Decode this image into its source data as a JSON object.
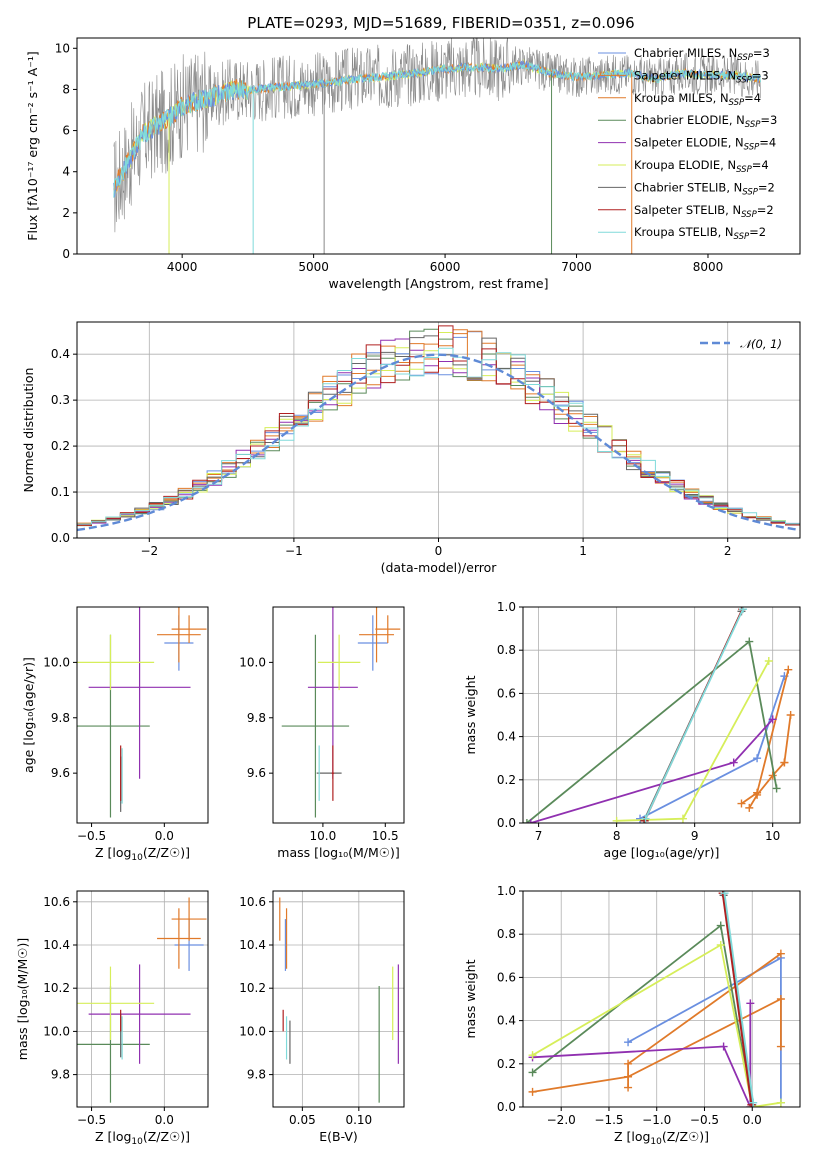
{
  "title": "PLATE=0293, MJD=51689, FIBERID=0351, z=0.096",
  "models": [
    {
      "key": "chabrier_miles",
      "color": "#6a8fe0"
    },
    {
      "key": "salpeter_miles",
      "color": "#e07a2a"
    },
    {
      "key": "kroupa_miles",
      "color": "#e07a2a"
    },
    {
      "key": "chabrier_elodie",
      "color": "#5a8a5a"
    },
    {
      "key": "salpeter_elodie",
      "color": "#9030b0"
    },
    {
      "key": "kroupa_elodie",
      "color": "#d6ee5a"
    },
    {
      "key": "chabrier_stelib",
      "color": "#666666"
    },
    {
      "key": "salpeter_stelib",
      "color": "#b02020"
    },
    {
      "key": "kroupa_stelib",
      "color": "#80dada"
    }
  ],
  "chart_data": [
    {
      "id": "spectrum",
      "type": "line",
      "xlabel": "wavelength [Angstrom, rest frame]",
      "ylabel": "Flux [fλ10⁻¹⁷ erg cm⁻² s⁻¹ A⁻¹]",
      "xlim": [
        3200,
        8700
      ],
      "ylim": [
        0,
        10.5
      ],
      "xticks": [
        4000,
        5000,
        6000,
        7000,
        8000
      ],
      "yticks": [
        0,
        2,
        4,
        6,
        8,
        10
      ],
      "legend_position": "right",
      "legend": [
        {
          "label": "Chabrier MILES, N",
          "sub": "SSP",
          "suffix": "=3",
          "color": "#6a8fe0"
        },
        {
          "label": "Salpeter MILES, N",
          "sub": "SSP",
          "suffix": "=3",
          "color": "#e07a2a"
        },
        {
          "label": "Kroupa MILES, N",
          "sub": "SSP",
          "suffix": "=4",
          "color": "#e07a2a"
        },
        {
          "label": "Chabrier ELODIE, N",
          "sub": "SSP",
          "suffix": "=3",
          "color": "#5a8a5a"
        },
        {
          "label": "Salpeter ELODIE, N",
          "sub": "SSP",
          "suffix": "=4",
          "color": "#9030b0"
        },
        {
          "label": "Kroupa ELODIE, N",
          "sub": "SSP",
          "suffix": "=4",
          "color": "#d6ee5a"
        },
        {
          "label": "Chabrier STELIB, N",
          "sub": "SSP",
          "suffix": "=2",
          "color": "#666666"
        },
        {
          "label": "Salpeter STELIB, N",
          "sub": "SSP",
          "suffix": "=2",
          "color": "#b02020"
        },
        {
          "label": "Kroupa STELIB, N",
          "sub": "SSP",
          "suffix": "=2",
          "color": "#80dada"
        }
      ],
      "continuum": {
        "x": [
          3480,
          3600,
          3700,
          3800,
          3900,
          4000,
          4100,
          4200,
          4300,
          4400,
          4500,
          4700,
          4900,
          5100,
          5300,
          5500,
          5800,
          6000,
          6200,
          6400,
          6600,
          6800,
          7000,
          7200,
          7400,
          7600,
          7800,
          8000,
          8200,
          8400,
          8600
        ],
        "y": [
          3.2,
          4.6,
          5.8,
          6.2,
          6.6,
          7.2,
          7.4,
          7.6,
          7.8,
          8.0,
          8.0,
          8.1,
          8.2,
          8.3,
          8.5,
          8.6,
          8.8,
          9.0,
          9.1,
          9.0,
          9.2,
          8.8,
          8.6,
          8.7,
          8.8,
          8.5,
          8.8,
          8.7,
          8.7,
          8.5,
          8.4
        ]
      },
      "drops": [
        {
          "x": 3900,
          "color": "#d6ee5a"
        },
        {
          "x": 4540,
          "color": "#80dada"
        },
        {
          "x": 5080,
          "color": "#888888"
        },
        {
          "x": 6810,
          "color": "#5a8a5a"
        },
        {
          "x": 7420,
          "color": "#e07a2a"
        }
      ]
    },
    {
      "id": "residual_histogram",
      "type": "area",
      "xlabel": "(data-model)/error",
      "ylabel": "Normed distribution",
      "xlim": [
        -2.5,
        2.5
      ],
      "ylim": [
        0,
        0.47
      ],
      "xticks": [
        -2,
        -1,
        0,
        1,
        2
      ],
      "yticks": [
        0.0,
        0.1,
        0.2,
        0.3,
        0.4
      ],
      "grid": true,
      "legend_position": "top-right",
      "legend_label": "𝒩(0, 1)",
      "normal_color": "#5f8ad6"
    },
    {
      "id": "age_vs_Z",
      "type": "scatter",
      "xlabel_main": "Z [log",
      "xlabel_sub": "10",
      "xlabel_rest": "(Z/Z☉)]",
      "ylabel": "age  [log₁₀(age/yr)]",
      "xlim": [
        -0.6,
        0.3
      ],
      "ylim": [
        9.42,
        10.2
      ],
      "xticks": [
        -0.5,
        0.0
      ],
      "yticks": [
        9.6,
        9.8,
        10.0
      ],
      "points": [
        {
          "m": 0,
          "x": 0.1,
          "y": 10.07,
          "xe": 0.1,
          "ye": 0.1
        },
        {
          "m": 1,
          "x": 0.1,
          "y": 10.1,
          "xe": 0.15,
          "ye": 0.1
        },
        {
          "m": 2,
          "x": 0.17,
          "y": 10.12,
          "xe": 0.12,
          "ye": 0.05
        },
        {
          "m": 3,
          "x": -0.37,
          "y": 9.77,
          "xe": 0.27,
          "ye": 0.33
        },
        {
          "m": 4,
          "x": -0.17,
          "y": 9.91,
          "xe": 0.35,
          "ye": 0.33
        },
        {
          "m": 5,
          "x": -0.37,
          "y": 10.0,
          "xe": 0.3,
          "ye": 0.1
        },
        {
          "m": 6,
          "x": -0.3,
          "y": 9.56,
          "xe": 0.0,
          "ye": 0.1
        },
        {
          "m": 7,
          "x": -0.3,
          "y": 9.6,
          "xe": 0.0,
          "ye": 0.1
        },
        {
          "m": 8,
          "x": -0.29,
          "y": 9.59,
          "xe": 0.0,
          "ye": 0.1
        }
      ]
    },
    {
      "id": "age_vs_mass",
      "type": "scatter",
      "xlabel": "mass [log₁₀(M/M☉)]",
      "xlim": [
        9.6,
        10.65
      ],
      "ylim": [
        9.42,
        10.2
      ],
      "xticks": [
        10.0,
        10.5
      ],
      "yticks": [
        9.6,
        9.8,
        10.0
      ],
      "points": [
        {
          "m": 0,
          "x": 10.4,
          "y": 10.07,
          "xe": 0.12,
          "ye": 0.1
        },
        {
          "m": 1,
          "x": 10.43,
          "y": 10.1,
          "xe": 0.14,
          "ye": 0.1
        },
        {
          "m": 2,
          "x": 10.52,
          "y": 10.12,
          "xe": 0.1,
          "ye": 0.05
        },
        {
          "m": 3,
          "x": 9.94,
          "y": 9.77,
          "xe": 0.27,
          "ye": 0.33
        },
        {
          "m": 4,
          "x": 10.08,
          "y": 9.91,
          "xe": 0.2,
          "ye": 0.33
        },
        {
          "m": 5,
          "x": 10.13,
          "y": 10.0,
          "xe": 0.17,
          "ye": 0.1
        },
        {
          "m": 6,
          "x": 10.05,
          "y": 9.6,
          "xe": 0.1,
          "ye": 0.0
        },
        {
          "m": 7,
          "x": 10.08,
          "y": 9.6,
          "xe": 0.01,
          "ye": 0.1
        },
        {
          "m": 8,
          "x": 9.97,
          "y": 9.6,
          "xe": 0.0,
          "ye": 0.1
        }
      ]
    },
    {
      "id": "weight_vs_age",
      "type": "line",
      "xlabel": "age  [log₁₀(age/yr)]",
      "ylabel": "mass weight",
      "xlim": [
        6.8,
        10.35
      ],
      "ylim": [
        0,
        1
      ],
      "xticks": [
        7,
        8,
        9,
        10
      ],
      "yticks": [
        0.0,
        0.2,
        0.4,
        0.6,
        0.8,
        1.0
      ],
      "grid": true,
      "series": [
        {
          "m": 0,
          "x": [
            8.3,
            9.8,
            10.15
          ],
          "y": [
            0.02,
            0.3,
            0.68
          ]
        },
        {
          "m": 1,
          "x": [
            9.7,
            9.8,
            10.0,
            10.15
          ],
          "y": [
            0.07,
            0.13,
            0.22,
            0.28
          ]
        },
        {
          "m": 2,
          "x": [
            9.6,
            9.8,
            10.2
          ],
          "y": [
            0.09,
            0.14,
            0.71
          ]
        },
        {
          "m": 3,
          "x": [
            6.85,
            9.7,
            10.05
          ],
          "y": [
            0.0,
            0.84,
            0.16
          ]
        },
        {
          "m": 4,
          "x": [
            6.9,
            9.5,
            10.0
          ],
          "y": [
            0.0,
            0.28,
            0.48
          ]
        },
        {
          "m": 5,
          "x": [
            8.0,
            8.85,
            9.95
          ],
          "y": [
            0.01,
            0.02,
            0.75
          ]
        },
        {
          "m": 6,
          "x": [
            8.35,
            9.6
          ],
          "y": [
            0.01,
            0.98
          ]
        },
        {
          "m": 7,
          "x": [
            8.36,
            9.61
          ],
          "y": [
            0.01,
            0.99
          ]
        },
        {
          "m": 8,
          "x": [
            8.37,
            9.62
          ],
          "y": [
            0.02,
            0.99
          ]
        },
        {
          "m": 1,
          "x": [
            10.15,
            10.23
          ],
          "y": [
            0.28,
            0.5
          ]
        }
      ]
    },
    {
      "id": "mass_vs_Z",
      "type": "scatter",
      "xlabel_main": "Z [log",
      "xlabel_sub": "10",
      "xlabel_rest": "(Z/Z☉)]",
      "ylabel": "mass [log₁₀(M/M☉)]",
      "xlim": [
        -0.6,
        0.3
      ],
      "ylim": [
        9.65,
        10.65
      ],
      "xticks": [
        -0.5,
        0.0
      ],
      "yticks": [
        9.8,
        10.0,
        10.2,
        10.4,
        10.6
      ],
      "grid": true,
      "points": [
        {
          "m": 0,
          "x": 0.17,
          "y": 10.4,
          "xe": 0.1,
          "ye": 0.12
        },
        {
          "m": 1,
          "x": 0.1,
          "y": 10.43,
          "xe": 0.15,
          "ye": 0.14
        },
        {
          "m": 2,
          "x": 0.17,
          "y": 10.52,
          "xe": 0.12,
          "ye": 0.1
        },
        {
          "m": 3,
          "x": -0.37,
          "y": 9.94,
          "xe": 0.27,
          "ye": 0.27
        },
        {
          "m": 4,
          "x": -0.17,
          "y": 10.08,
          "xe": 0.35,
          "ye": 0.23
        },
        {
          "m": 5,
          "x": -0.37,
          "y": 10.13,
          "xe": 0.3,
          "ye": 0.17
        },
        {
          "m": 6,
          "x": -0.3,
          "y": 9.98,
          "xe": 0.0,
          "ye": 0.1
        },
        {
          "m": 7,
          "x": -0.3,
          "y": 10.05,
          "xe": 0.0,
          "ye": 0.05
        },
        {
          "m": 8,
          "x": -0.29,
          "y": 9.97,
          "xe": 0.0,
          "ye": 0.1
        }
      ]
    },
    {
      "id": "mass_vs_ebv",
      "type": "scatter",
      "xlabel": "E(B-V)",
      "xlim": [
        0.024,
        0.14
      ],
      "ylim": [
        9.65,
        10.65
      ],
      "xticks": [
        0.05,
        0.1
      ],
      "xtick_labels": [
        "0.05",
        "0.10"
      ],
      "yticks": [
        9.8,
        10.0,
        10.2,
        10.4,
        10.6
      ],
      "grid": true,
      "points": [
        {
          "m": 0,
          "x": 0.035,
          "y": 10.4,
          "ye": 0.12
        },
        {
          "m": 1,
          "x": 0.036,
          "y": 10.43,
          "ye": 0.14
        },
        {
          "m": 2,
          "x": 0.03,
          "y": 10.52,
          "ye": 0.1
        },
        {
          "m": 3,
          "x": 0.118,
          "y": 9.94,
          "ye": 0.27
        },
        {
          "m": 4,
          "x": 0.135,
          "y": 10.08,
          "ye": 0.23
        },
        {
          "m": 5,
          "x": 0.13,
          "y": 10.13,
          "ye": 0.17
        },
        {
          "m": 6,
          "x": 0.039,
          "y": 9.95,
          "ye": 0.1
        },
        {
          "m": 7,
          "x": 0.033,
          "y": 10.05,
          "ye": 0.05
        },
        {
          "m": 8,
          "x": 0.036,
          "y": 9.97,
          "ye": 0.1
        }
      ]
    },
    {
      "id": "weight_vs_Z",
      "type": "line",
      "xlabel_main": "Z [log",
      "xlabel_sub": "10",
      "xlabel_rest": "(Z/Z☉)]",
      "ylabel": "mass weight",
      "xlim": [
        -2.4,
        0.5
      ],
      "ylim": [
        0,
        1
      ],
      "xticks": [
        -2.0,
        -1.5,
        -1.0,
        -0.5,
        0.0
      ],
      "yticks": [
        0.0,
        0.2,
        0.4,
        0.6,
        0.8,
        1.0
      ],
      "grid": true,
      "series": [
        {
          "m": 0,
          "x": [
            -1.3,
            0.3,
            0.3
          ],
          "y": [
            0.3,
            0.69,
            0.02
          ]
        },
        {
          "m": 1,
          "x": [
            -2.3,
            -1.3,
            0.3,
            0.3
          ],
          "y": [
            0.07,
            0.14,
            0.5,
            0.28
          ]
        },
        {
          "m": 2,
          "x": [
            -1.3,
            -1.3,
            0.3
          ],
          "y": [
            0.09,
            0.2,
            0.71
          ]
        },
        {
          "m": 3,
          "x": [
            -2.3,
            -0.33,
            0.0
          ],
          "y": [
            0.16,
            0.84,
            0.0
          ]
        },
        {
          "m": 4,
          "x": [
            -2.3,
            -0.3,
            -0.02,
            -0.02
          ],
          "y": [
            0.23,
            0.28,
            0.0,
            0.48
          ]
        },
        {
          "m": 5,
          "x": [
            -2.3,
            -0.33,
            0.0,
            0.3
          ],
          "y": [
            0.24,
            0.75,
            0.0,
            0.02
          ]
        },
        {
          "m": 6,
          "x": [
            -0.3,
            0.0
          ],
          "y": [
            0.98,
            0.01
          ]
        },
        {
          "m": 7,
          "x": [
            -0.31,
            -0.01
          ],
          "y": [
            0.99,
            0.01
          ]
        },
        {
          "m": 8,
          "x": [
            -0.29,
            0.01
          ],
          "y": [
            0.99,
            0.02
          ]
        }
      ]
    }
  ]
}
